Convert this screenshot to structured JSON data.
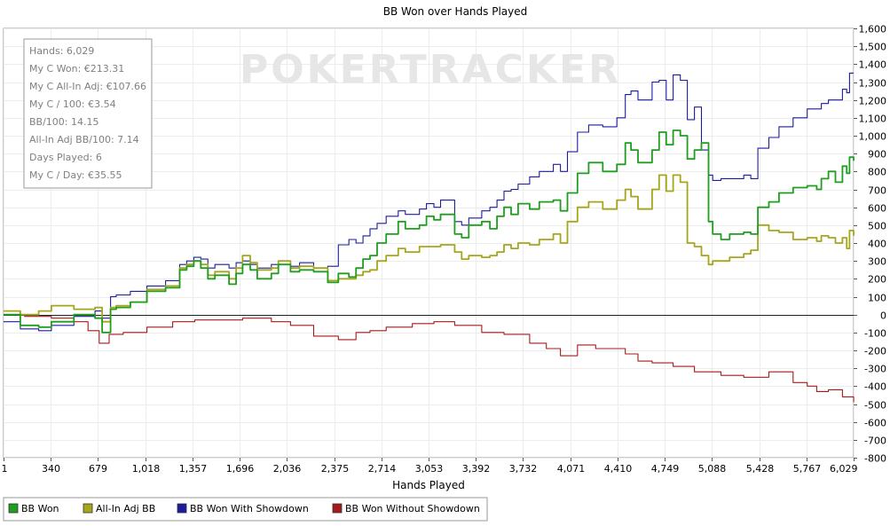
{
  "chart_data": {
    "type": "line",
    "title": "BB Won over Hands Played",
    "xlabel": "Hands Played",
    "ylabel": "",
    "xlim": [
      1,
      6029
    ],
    "ylim": [
      -800,
      1600
    ],
    "x_ticks": [
      "1",
      "340",
      "679",
      "1,018",
      "1,357",
      "1,696",
      "2,036",
      "2,375",
      "2,714",
      "3,053",
      "3,392",
      "3,732",
      "4,071",
      "4,410",
      "4,749",
      "5,088",
      "5,428",
      "5,767",
      "6,029"
    ],
    "y_ticks": [
      -800,
      -700,
      -600,
      -500,
      -400,
      -300,
      -200,
      -100,
      0,
      100,
      200,
      300,
      400,
      500,
      600,
      700,
      800,
      900,
      1000,
      1100,
      1200,
      1300,
      1400,
      1500,
      1600
    ],
    "y_tick_labels": [
      "-800",
      "-700",
      "-600",
      "-500",
      "-400",
      "-300",
      "-200",
      "-100",
      "0",
      "100",
      "200",
      "300",
      "400",
      "500",
      "600",
      "700",
      "800",
      "900",
      "1,000",
      "1,100",
      "1,200",
      "1,300",
      "1,400",
      "1,500",
      "1,600"
    ],
    "grid": true,
    "legend_placement": "bottom",
    "watermark": "POKERTRACKER",
    "stats": [
      "Hands: 6,029",
      "My C Won: €213.31",
      "My C All-In Adj: €107.66",
      "My C / 100: €3.54",
      "BB/100: 14.15",
      "All-In Adj BB/100: 7.14",
      "Days Played: 6",
      "My C / Day: €35.55"
    ],
    "series": [
      {
        "name": "BB Won",
        "color": "#1f9e1f",
        "x": [
          1,
          120,
          250,
          340,
          500,
          650,
          700,
          760,
          800,
          900,
          1018,
          1150,
          1250,
          1300,
          1350,
          1400,
          1450,
          1500,
          1600,
          1650,
          1696,
          1750,
          1800,
          1900,
          1950,
          2036,
          2100,
          2200,
          2300,
          2375,
          2450,
          2500,
          2550,
          2600,
          2650,
          2714,
          2800,
          2850,
          2950,
          3000,
          3053,
          3100,
          3200,
          3250,
          3300,
          3392,
          3450,
          3500,
          3550,
          3600,
          3650,
          3732,
          3800,
          3900,
          3950,
          4000,
          4071,
          4150,
          4250,
          4350,
          4410,
          4450,
          4500,
          4600,
          4650,
          4700,
          4749,
          4800,
          4850,
          4900,
          4950,
          5000,
          5030,
          5088,
          5150,
          5250,
          5300,
          5350,
          5428,
          5500,
          5600,
          5700,
          5767,
          5800,
          5850,
          5900,
          5950,
          5980,
          6000,
          6029
        ],
        "values": [
          0,
          -60,
          -70,
          -40,
          0,
          -20,
          -100,
          30,
          40,
          70,
          130,
          150,
          250,
          270,
          300,
          260,
          200,
          220,
          170,
          230,
          280,
          250,
          200,
          230,
          280,
          240,
          250,
          240,
          180,
          230,
          210,
          260,
          310,
          330,
          400,
          450,
          520,
          480,
          500,
          550,
          530,
          560,
          450,
          430,
          500,
          520,
          480,
          550,
          600,
          560,
          620,
          590,
          630,
          640,
          580,
          680,
          790,
          850,
          800,
          840,
          960,
          920,
          850,
          920,
          1020,
          950,
          1030,
          1000,
          870,
          920,
          960,
          520,
          450,
          420,
          450,
          460,
          450,
          600,
          630,
          680,
          710,
          720,
          700,
          760,
          800,
          740,
          830,
          790,
          880,
          860
        ]
      },
      {
        "name": "All-In Adj BB",
        "color": "#a6a61b",
        "x": [
          1,
          120,
          250,
          340,
          500,
          650,
          700,
          760,
          800,
          900,
          1018,
          1150,
          1250,
          1300,
          1350,
          1400,
          1450,
          1500,
          1600,
          1650,
          1696,
          1750,
          1800,
          1900,
          1950,
          2036,
          2100,
          2200,
          2300,
          2375,
          2450,
          2500,
          2550,
          2600,
          2650,
          2714,
          2800,
          2850,
          2950,
          3000,
          3053,
          3100,
          3200,
          3250,
          3300,
          3392,
          3450,
          3500,
          3550,
          3600,
          3650,
          3732,
          3800,
          3900,
          3950,
          4000,
          4071,
          4150,
          4250,
          4350,
          4410,
          4450,
          4500,
          4600,
          4650,
          4700,
          4749,
          4800,
          4850,
          4900,
          4950,
          5000,
          5030,
          5088,
          5150,
          5250,
          5300,
          5350,
          5428,
          5500,
          5600,
          5700,
          5767,
          5800,
          5850,
          5900,
          5950,
          5980,
          6000,
          6029
        ],
        "values": [
          20,
          0,
          20,
          50,
          30,
          40,
          -40,
          40,
          50,
          70,
          140,
          160,
          260,
          280,
          300,
          280,
          220,
          240,
          200,
          260,
          330,
          290,
          250,
          260,
          300,
          260,
          270,
          260,
          190,
          200,
          200,
          220,
          240,
          250,
          300,
          330,
          370,
          350,
          380,
          380,
          380,
          390,
          350,
          310,
          330,
          320,
          330,
          350,
          390,
          370,
          400,
          390,
          420,
          450,
          400,
          520,
          600,
          630,
          590,
          640,
          700,
          660,
          590,
          700,
          780,
          690,
          780,
          740,
          400,
          380,
          330,
          280,
          300,
          300,
          320,
          340,
          360,
          500,
          470,
          460,
          420,
          430,
          410,
          440,
          430,
          400,
          430,
          370,
          470,
          440
        ]
      },
      {
        "name": "BB Won With Showdown",
        "color": "#1c1c9e",
        "x": [
          1,
          120,
          250,
          340,
          500,
          650,
          700,
          760,
          800,
          900,
          1018,
          1150,
          1250,
          1300,
          1350,
          1400,
          1450,
          1500,
          1600,
          1650,
          1696,
          1750,
          1800,
          1900,
          1950,
          2036,
          2100,
          2200,
          2300,
          2375,
          2450,
          2500,
          2550,
          2600,
          2650,
          2714,
          2800,
          2850,
          2950,
          3000,
          3053,
          3100,
          3200,
          3250,
          3300,
          3392,
          3450,
          3500,
          3550,
          3600,
          3650,
          3732,
          3800,
          3900,
          3950,
          4000,
          4071,
          4150,
          4250,
          4350,
          4410,
          4450,
          4500,
          4600,
          4650,
          4700,
          4749,
          4800,
          4850,
          4900,
          4950,
          5000,
          5030,
          5088,
          5150,
          5250,
          5300,
          5350,
          5428,
          5500,
          5600,
          5700,
          5767,
          5800,
          5850,
          5900,
          5950,
          5980,
          6000,
          6029
        ],
        "values": [
          -40,
          -80,
          -90,
          -60,
          -10,
          20,
          -20,
          100,
          110,
          130,
          160,
          190,
          280,
          300,
          320,
          310,
          260,
          280,
          260,
          290,
          300,
          280,
          260,
          280,
          300,
          270,
          290,
          260,
          270,
          390,
          420,
          400,
          440,
          480,
          510,
          550,
          580,
          560,
          590,
          620,
          600,
          640,
          520,
          500,
          540,
          580,
          600,
          640,
          690,
          700,
          730,
          770,
          800,
          840,
          800,
          910,
          1020,
          1060,
          1050,
          1100,
          1230,
          1250,
          1200,
          1300,
          1310,
          1200,
          1340,
          1310,
          1090,
          1160,
          920,
          780,
          750,
          760,
          760,
          780,
          760,
          930,
          990,
          1050,
          1100,
          1150,
          1150,
          1180,
          1200,
          1200,
          1260,
          1240,
          1350,
          1350
        ]
      },
      {
        "name": "BB Won Without Showdown",
        "color": "#a31b1b",
        "x": [
          1,
          150,
          340,
          500,
          600,
          679,
          750,
          850,
          1018,
          1200,
          1357,
          1550,
          1696,
          1900,
          2036,
          2200,
          2375,
          2500,
          2600,
          2714,
          2900,
          3053,
          3200,
          3392,
          3550,
          3732,
          3850,
          3950,
          4071,
          4200,
          4410,
          4500,
          4600,
          4749,
          4900,
          5088,
          5250,
          5428,
          5600,
          5700,
          5767,
          5850,
          5950,
          6029
        ],
        "values": [
          0,
          -10,
          -20,
          -40,
          -90,
          -160,
          -110,
          -100,
          -70,
          -40,
          -30,
          -30,
          -20,
          -40,
          -60,
          -120,
          -140,
          -100,
          -90,
          -70,
          -50,
          -40,
          -60,
          -100,
          -110,
          -160,
          -190,
          -230,
          -170,
          -190,
          -220,
          -260,
          -270,
          -290,
          -320,
          -340,
          -350,
          -320,
          -380,
          -400,
          -430,
          -420,
          -460,
          -490
        ]
      }
    ]
  }
}
